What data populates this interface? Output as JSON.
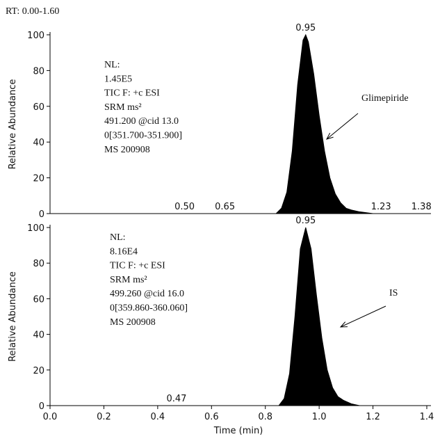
{
  "header": "RT: 0.00-1.60",
  "chart_data": [
    {
      "type": "area",
      "y_label": "Relative Abundance",
      "compound": "Glimepiride",
      "info": [
        "NL:",
        "1.45E5",
        "TIC F: +c ESI",
        "SRM ms²",
        "491.200 @cid 13.0",
        "0[351.700-351.900]",
        "MS 200908"
      ],
      "x": [
        0.0,
        0.84,
        0.86,
        0.88,
        0.9,
        0.92,
        0.94,
        0.95,
        0.96,
        0.98,
        1.0,
        1.02,
        1.04,
        1.06,
        1.08,
        1.1,
        1.12,
        1.15,
        1.2,
        1.4
      ],
      "values": [
        0,
        0,
        3,
        12,
        35,
        72,
        97,
        100,
        96,
        78,
        55,
        35,
        20,
        11,
        6,
        3,
        2,
        1,
        0,
        0
      ],
      "color": "#000000",
      "peak_labels": [
        {
          "text": "0.95",
          "x": 0.95,
          "y": 100
        },
        {
          "text": "0.50",
          "x": 0.5,
          "y": 0
        },
        {
          "text": "0.65",
          "x": 0.65,
          "y": 0
        },
        {
          "text": "1.23",
          "x": 1.23,
          "y": 0
        },
        {
          "text": "1.38",
          "x": 1.38,
          "y": 0
        }
      ],
      "xlim": [
        0,
        1.4
      ],
      "ylim": [
        0,
        100
      ],
      "yticks": [
        0,
        20,
        40,
        60,
        80,
        100
      ]
    },
    {
      "type": "area",
      "y_label": "Relative Abundance",
      "compound": "IS",
      "x_label": "Time (min)",
      "info": [
        "NL:",
        "8.16E4",
        "TIC F: +c ESI",
        "SRM ms²",
        "499.260 @cid 16.0",
        "0[359.860-360.060]",
        "MS 200908"
      ],
      "x": [
        0.0,
        0.85,
        0.87,
        0.89,
        0.91,
        0.93,
        0.95,
        0.97,
        0.99,
        1.01,
        1.03,
        1.05,
        1.07,
        1.09,
        1.12,
        1.15,
        1.4
      ],
      "values": [
        0,
        0,
        4,
        18,
        50,
        88,
        100,
        88,
        62,
        38,
        20,
        10,
        5,
        3,
        1,
        0,
        0
      ],
      "color": "#000000",
      "peak_labels": [
        {
          "text": "0.95",
          "x": 0.95,
          "y": 100
        },
        {
          "text": "0.47",
          "x": 0.47,
          "y": 0
        }
      ],
      "xlim": [
        0,
        1.4
      ],
      "ylim": [
        0,
        100
      ],
      "yticks": [
        0,
        20,
        40,
        60,
        80,
        100
      ],
      "xticks": [
        {
          "value": 0,
          "label": "0.0"
        },
        0.2,
        0.4,
        0.6,
        0.8,
        {
          "value": 1,
          "label": "1.0"
        },
        1.2,
        1.4
      ]
    }
  ]
}
